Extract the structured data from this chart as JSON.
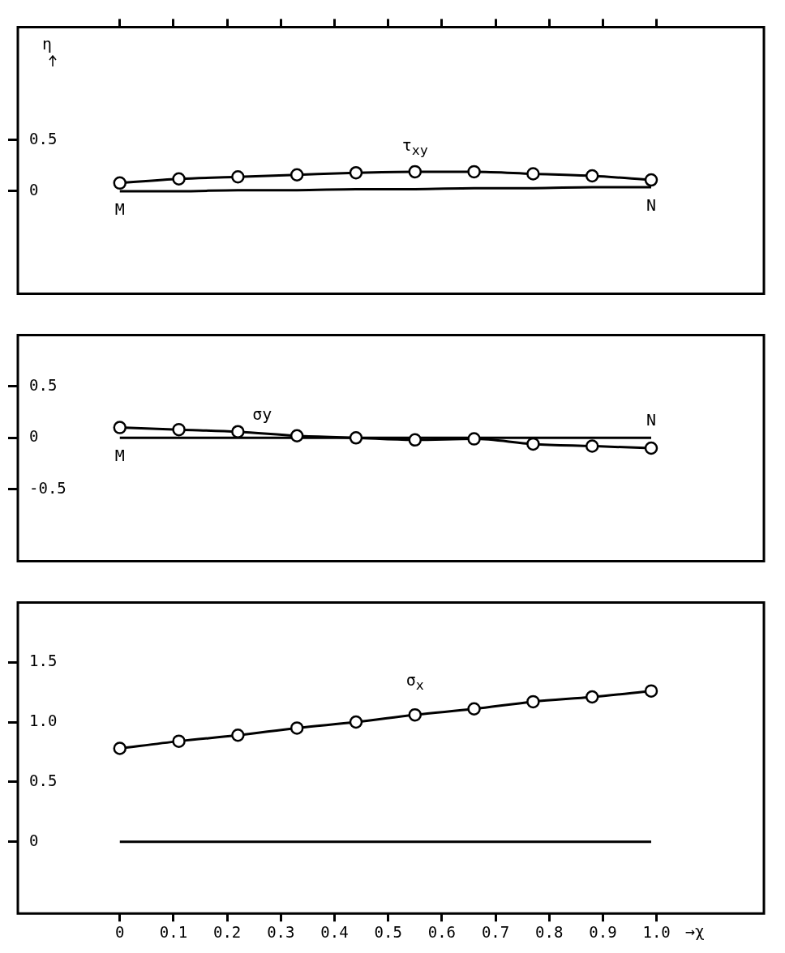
{
  "chart_data": [
    {
      "type": "line",
      "ylabel": "η",
      "xlim": [
        -0.19,
        1.2
      ],
      "xticks": [
        0,
        0.1,
        0.2,
        0.3,
        0.4,
        0.5,
        0.6,
        0.7,
        0.8,
        0.9,
        1
      ],
      "ylim": [
        -1.0,
        1.6
      ],
      "yticks": [
        0,
        0.5
      ],
      "tick_labels": "y",
      "grid": false,
      "legend": false,
      "x": [
        0,
        0.11,
        0.22,
        0.33,
        0.44,
        0.55,
        0.66,
        0.77,
        0.88,
        0.99
      ],
      "series": [
        {
          "color": "#000000",
          "marker": "circle",
          "values": [
            0.08,
            0.12,
            0.14,
            0.16,
            0.18,
            0.19,
            0.19,
            0.17,
            0.15,
            0.11
          ]
        },
        {
          "color": "#000000",
          "marker": "none",
          "values": [
            0,
            0,
            0.01,
            0.01,
            0.02,
            0.02,
            0.03,
            0.03,
            0.04,
            0.04
          ]
        }
      ],
      "annotations": [
        {
          "text": "τ$_{xy}$",
          "x": 0.55,
          "y": 0.19
        },
        {
          "text": "M",
          "x": 0,
          "y": 0
        },
        {
          "text": "N",
          "x": 0.99,
          "y": 0.04
        }
      ]
    },
    {
      "type": "line",
      "xlim": [
        -0.19,
        1.2
      ],
      "ylim": [
        -1.2,
        1.0
      ],
      "yticks": [
        -0.5,
        0,
        0.5
      ],
      "tick_labels": "y",
      "grid": false,
      "legend": false,
      "x": [
        0,
        0.11,
        0.22,
        0.33,
        0.44,
        0.55,
        0.66,
        0.77,
        0.88,
        0.99
      ],
      "series": [
        {
          "color": "#000000",
          "marker": "circle",
          "values": [
            0.1,
            0.08,
            0.06,
            0.02,
            0.0,
            -0.02,
            -0.01,
            -0.06,
            -0.08,
            -0.1
          ]
        },
        {
          "color": "#000000",
          "marker": "none",
          "values": [
            0,
            0,
            0,
            0,
            0,
            0,
            0,
            0,
            0,
            0
          ]
        }
      ],
      "annotations": [
        {
          "text": "σy",
          "x": 0.22,
          "y": 0.06
        },
        {
          "text": "M",
          "x": 0,
          "y": 0
        },
        {
          "text": "N",
          "x": 0.99,
          "y": 0
        }
      ]
    },
    {
      "type": "line",
      "xlabel": "→χ",
      "xlim": [
        -0.19,
        1.2
      ],
      "xticks": [
        0,
        0.1,
        0.2,
        0.3,
        0.4,
        0.5,
        0.6,
        0.7,
        0.8,
        0.9,
        {
          "value": 1,
          "label": "1.0"
        }
      ],
      "ylim": [
        -0.6,
        2.0
      ],
      "yticks": [
        0,
        0.5,
        {
          "value": 1,
          "label": "1.0"
        },
        1.5
      ],
      "grid": false,
      "legend": false,
      "x": [
        0,
        0.11,
        0.22,
        0.33,
        0.44,
        0.55,
        0.66,
        0.77,
        0.88,
        0.99
      ],
      "series": [
        {
          "color": "#000000",
          "marker": "circle",
          "values": [
            0.78,
            0.84,
            0.89,
            0.95,
            1.0,
            1.06,
            1.11,
            1.17,
            1.21,
            1.26
          ]
        },
        {
          "color": "#000000",
          "marker": "none",
          "values": [
            0,
            0,
            0,
            0,
            0,
            0,
            0,
            0,
            0,
            0
          ]
        }
      ],
      "annotations": [
        {
          "text": "σ$_{x}$",
          "x": 0.55,
          "y": 1.06
        }
      ]
    }
  ]
}
